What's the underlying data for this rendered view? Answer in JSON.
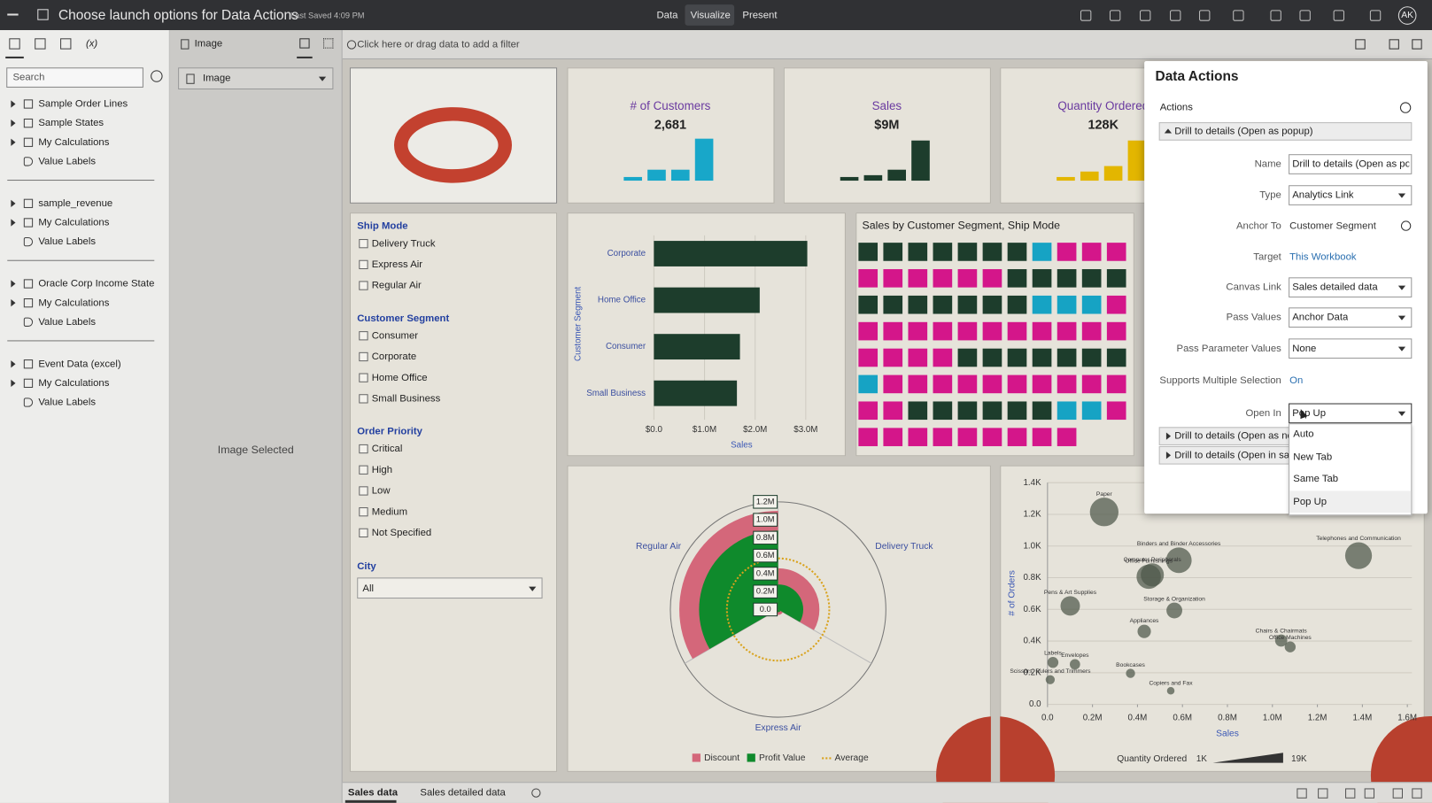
{
  "header": {
    "title": "Choose launch options for Data Actions",
    "saved": "Last Saved 4:09 PM",
    "tabs": [
      "Data",
      "Visualize",
      "Present"
    ],
    "user": "AK"
  },
  "data_panel": {
    "calc_tab": "(x)",
    "search": "Search",
    "groups": [
      {
        "sources": [
          "Sample Order Lines",
          "Sample States"
        ],
        "calculations": "My Calculations",
        "labels": "Value Labels"
      },
      {
        "sources": [
          "sample_revenue"
        ],
        "calculations": "My Calculations",
        "labels": "Value Labels"
      },
      {
        "sources": [
          "Oracle Corp Income State…"
        ],
        "calculations": "My Calculations",
        "labels": "Value Labels"
      },
      {
        "sources": [
          "Event Data (excel)"
        ],
        "calculations": "My Calculations",
        "labels": "Value Labels"
      }
    ]
  },
  "properties_panel": {
    "title": "Image",
    "select": "Image",
    "status": "Image Selected"
  },
  "filter_bar": {
    "placeholder": "Click here or drag data to add a filter"
  },
  "kpis": [
    {
      "title": "# of Customers",
      "value": "2,681",
      "color": "#18a7c9"
    },
    {
      "title": "Sales",
      "value": "$9M",
      "color": "#1d3d2c"
    },
    {
      "title": "Quantity Ordered",
      "value": "128K",
      "color": "#e3b600"
    }
  ],
  "filter_panel": {
    "groups": [
      {
        "title": "Ship Mode",
        "options": [
          "Delivery Truck",
          "Express Air",
          "Regular Air"
        ]
      },
      {
        "title": "Customer Segment",
        "options": [
          "Consumer",
          "Corporate",
          "Home Office",
          "Small Business"
        ]
      },
      {
        "title": "Order Priority",
        "options": [
          "Critical",
          "High",
          "Low",
          "Medium",
          "Not Specified"
        ]
      }
    ],
    "city": {
      "title": "City",
      "value": "All"
    }
  },
  "bar_chart": {
    "type": "bar",
    "y_label": "Customer Segment",
    "x_label": "Sales",
    "categories": [
      "Corporate",
      "Home Office",
      "Consumer",
      "Small Business"
    ],
    "values": [
      3030000,
      2090000,
      1700000,
      1640000
    ],
    "color": "#1d3d2c",
    "xlim": [
      0,
      3500000
    ],
    "xticks": [
      {
        "value": 0,
        "label": "$0.0"
      },
      {
        "value": 1000000,
        "label": "$1.0M"
      },
      {
        "value": 2000000,
        "label": "$2.0M"
      },
      {
        "value": 3000000,
        "label": "$3.0M"
      }
    ]
  },
  "waffle": {
    "title": "Sales by Customer Segment, Ship Mode"
  },
  "radar": {
    "type": "polar",
    "categories": [
      "Delivery Truck",
      "Express Air",
      "Regular Air"
    ],
    "series": [
      {
        "name": "Discount",
        "color": "#d4677a",
        "values": [
          460000,
          60000,
          1100000
        ]
      },
      {
        "name": "Profit Value",
        "color": "#0f8a2c",
        "values": [
          280000,
          30000,
          880000
        ]
      }
    ],
    "average": {
      "name": "Average",
      "color": "#d9a21b",
      "value": 570000
    },
    "rlim": [
      0,
      1200000
    ],
    "rticks": [
      {
        "value": 0,
        "label": "0.0"
      },
      {
        "value": 200000,
        "label": "0.2M"
      },
      {
        "value": 400000,
        "label": "0.4M"
      },
      {
        "value": 600000,
        "label": "0.6M"
      },
      {
        "value": 800000,
        "label": "0.8M"
      },
      {
        "value": 1000000,
        "label": "1.0M"
      },
      {
        "value": 1200000,
        "label": "1.2M"
      }
    ]
  },
  "scatter": {
    "type": "scatter",
    "x_label": "Sales",
    "y_label": "# of Orders",
    "size_label": "Quantity Ordered",
    "size_legend": [
      {
        "value": 1000,
        "label": "1K"
      },
      {
        "value": 19000,
        "label": "19K"
      }
    ],
    "points": [
      {
        "name": "Paper",
        "x": 252000,
        "y": 1215,
        "size": 18500
      },
      {
        "name": "Binders and Binder Accessories",
        "x": 584000,
        "y": 910,
        "size": 16000
      },
      {
        "name": "Office Furnishings",
        "x": 450000,
        "y": 806,
        "size": 15000
      },
      {
        "name": "Computer Peripherals",
        "x": 466000,
        "y": 818,
        "size": 14000
      },
      {
        "name": "Telephones and Communication",
        "x": 1383000,
        "y": 939,
        "size": 17000
      },
      {
        "name": "Pens & Art Supplies",
        "x": 101000,
        "y": 622,
        "size": 11000
      },
      {
        "name": "Storage & Organization",
        "x": 564000,
        "y": 593,
        "size": 8000
      },
      {
        "name": "Appliances",
        "x": 430000,
        "y": 461,
        "size": 6000
      },
      {
        "name": "Chairs & Chairmats",
        "x": 1039000,
        "y": 403,
        "size": 5000
      },
      {
        "name": "Office Machines",
        "x": 1079000,
        "y": 363,
        "size": 4000
      },
      {
        "name": "Labels",
        "x": 24000,
        "y": 265,
        "size": 4000
      },
      {
        "name": "Envelopes",
        "x": 122000,
        "y": 253,
        "size": 3500
      },
      {
        "name": "Scissors, Rulers and Trimmers",
        "x": 12000,
        "y": 156,
        "size": 2500
      },
      {
        "name": "Bookcases",
        "x": 369000,
        "y": 196,
        "size": 2500
      },
      {
        "name": "Copiers and Fax",
        "x": 548000,
        "y": 86,
        "size": 1200
      }
    ],
    "xlim": [
      0,
      1600000
    ],
    "ylim": [
      0,
      1400
    ],
    "xticks": [
      {
        "value": 0,
        "label": "0.0"
      },
      {
        "value": 200000,
        "label": "0.2M"
      },
      {
        "value": 400000,
        "label": "0.4M"
      },
      {
        "value": 600000,
        "label": "0.6M"
      },
      {
        "value": 800000,
        "label": "0.8M"
      },
      {
        "value": 1000000,
        "label": "1.0M"
      },
      {
        "value": 1200000,
        "label": "1.2M"
      },
      {
        "value": 1400000,
        "label": "1.4M"
      },
      {
        "value": 1600000,
        "label": "1.6M"
      }
    ],
    "yticks": [
      {
        "value": 0,
        "label": "0.0"
      },
      {
        "value": 200,
        "label": "0.2K"
      },
      {
        "value": 400,
        "label": "0.4K"
      },
      {
        "value": 600,
        "label": "0.6K"
      },
      {
        "value": 800,
        "label": "0.8K"
      },
      {
        "value": 1000,
        "label": "1.0K"
      },
      {
        "value": 1200,
        "label": "1.2K"
      },
      {
        "value": 1400,
        "label": "1.4K"
      }
    ]
  },
  "dialog": {
    "title": "Data Actions",
    "actions_label": "Actions",
    "active_action": "Drill to details (Open as popup)",
    "fields": [
      {
        "label": "Name",
        "value": "Drill to details (Open as pop",
        "kind": "input"
      },
      {
        "label": "Type",
        "value": "Analytics Link",
        "kind": "select"
      },
      {
        "label": "Anchor To",
        "value": "Customer Segment",
        "kind": "text"
      },
      {
        "label": "Target",
        "value": "This Workbook",
        "kind": "link"
      },
      {
        "label": "Canvas Link",
        "value": "Sales detailed data",
        "kind": "select"
      },
      {
        "label": "Pass Values",
        "value": "Anchor Data",
        "kind": "select"
      },
      {
        "label": "Pass Parameter Values",
        "value": "None",
        "kind": "select"
      },
      {
        "label": "Supports Multiple Selection",
        "value": "On",
        "kind": "link"
      },
      {
        "label": "Open In",
        "value": "Pop Up",
        "kind": "select"
      }
    ],
    "other_actions": [
      "Drill to details (Open as new",
      "Drill to details (Open in sam"
    ],
    "open_in_options": [
      "Auto",
      "New Tab",
      "Same Tab",
      "Pop Up"
    ]
  },
  "sheet_tabs": [
    "Sales data",
    "Sales detailed data"
  ]
}
